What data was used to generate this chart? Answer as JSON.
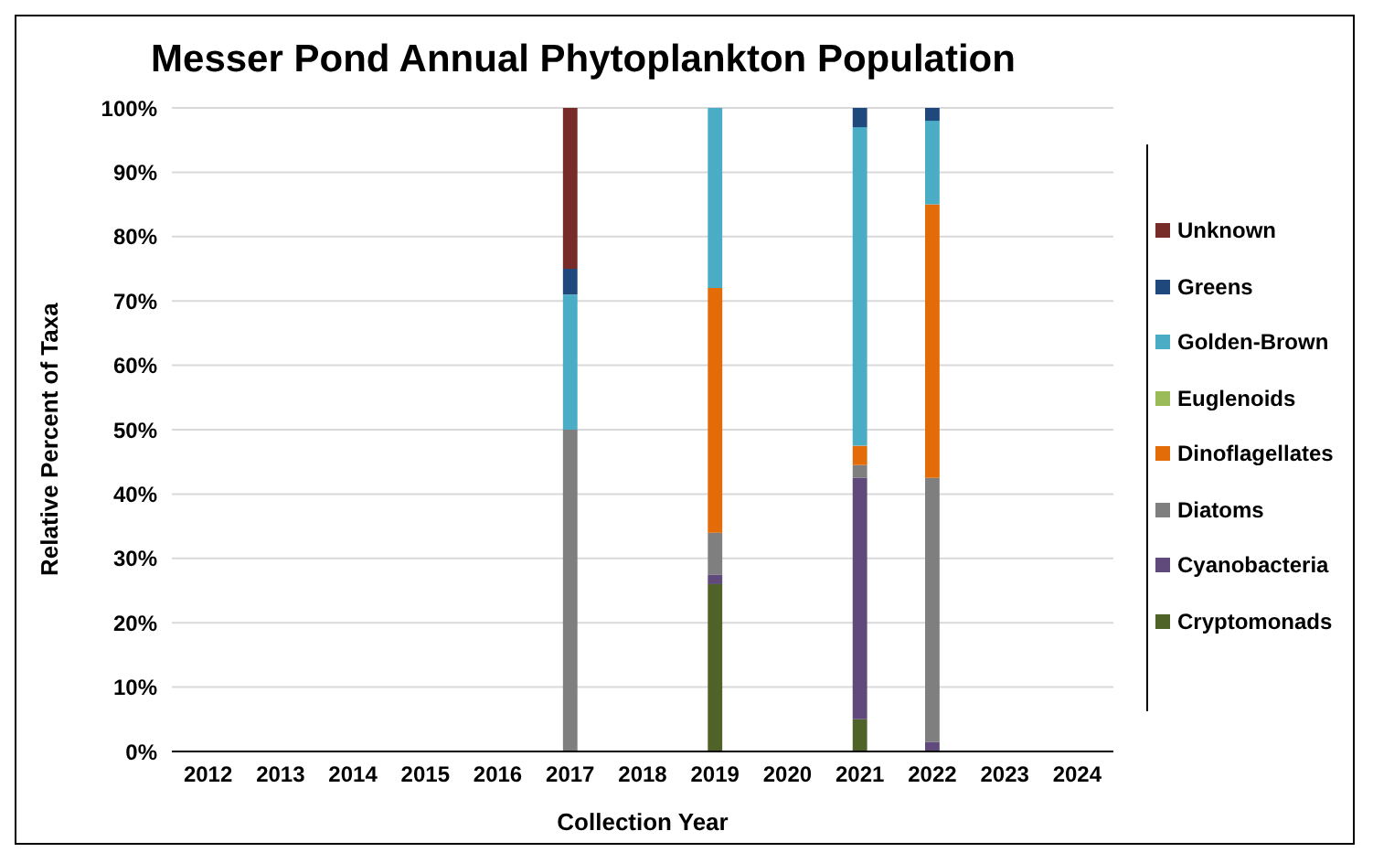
{
  "chart_data": {
    "type": "bar",
    "stacked": true,
    "title": "Messer Pond Annual Phytoplankton Population",
    "xlabel": "Collection Year",
    "ylabel": "Relative Percent of Taxa",
    "categories": [
      "2012",
      "2013",
      "2014",
      "2015",
      "2016",
      "2017",
      "2018",
      "2019",
      "2020",
      "2021",
      "2022",
      "2023",
      "2024"
    ],
    "series": [
      {
        "name": "Cryptomonads",
        "color": "#4f6228",
        "values": [
          null,
          null,
          null,
          null,
          null,
          null,
          null,
          26,
          null,
          5,
          null,
          null,
          null
        ]
      },
      {
        "name": "Cyanobacteria",
        "color": "#604a7b",
        "values": [
          null,
          null,
          null,
          null,
          null,
          null,
          null,
          1.5,
          null,
          37.5,
          1.5,
          null,
          null
        ]
      },
      {
        "name": "Diatoms",
        "color": "#7f7f7f",
        "values": [
          null,
          null,
          null,
          null,
          null,
          50,
          null,
          6.5,
          null,
          2,
          41,
          null,
          null
        ]
      },
      {
        "name": "Dinoflagellates",
        "color": "#e36c09",
        "values": [
          null,
          null,
          null,
          null,
          null,
          null,
          null,
          38,
          null,
          3,
          42.5,
          null,
          null
        ]
      },
      {
        "name": "Euglenoids",
        "color": "#9bbb59",
        "values": [
          null,
          null,
          null,
          null,
          null,
          null,
          null,
          null,
          null,
          null,
          null,
          null,
          null
        ]
      },
      {
        "name": "Golden-Brown",
        "color": "#4bacc6",
        "values": [
          null,
          null,
          null,
          null,
          null,
          21,
          null,
          28,
          null,
          49.5,
          13,
          null,
          null
        ]
      },
      {
        "name": "Greens",
        "color": "#1f497d",
        "values": [
          null,
          null,
          null,
          null,
          null,
          4,
          null,
          null,
          null,
          3,
          2,
          null,
          null
        ]
      },
      {
        "name": "Unknown",
        "color": "#772c2a",
        "values": [
          null,
          null,
          null,
          null,
          null,
          25,
          null,
          null,
          null,
          null,
          null,
          null,
          null
        ]
      }
    ],
    "ylim": [
      0,
      100
    ],
    "yticks": [
      {
        "value": 0,
        "label": "0%"
      },
      {
        "value": 10,
        "label": "10%"
      },
      {
        "value": 20,
        "label": "20%"
      },
      {
        "value": 30,
        "label": "30%"
      },
      {
        "value": 40,
        "label": "40%"
      },
      {
        "value": 50,
        "label": "50%"
      },
      {
        "value": 60,
        "label": "60%"
      },
      {
        "value": 70,
        "label": "70%"
      },
      {
        "value": 80,
        "label": "80%"
      },
      {
        "value": 90,
        "label": "90%"
      },
      {
        "value": 100,
        "label": "100%"
      }
    ],
    "grid": "y",
    "legend": "right"
  }
}
